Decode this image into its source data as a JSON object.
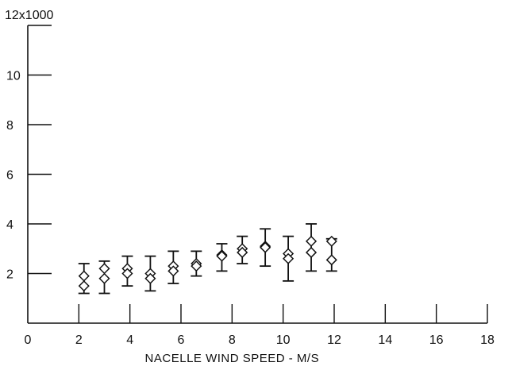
{
  "chart_data": {
    "type": "scatter",
    "title": "",
    "xlabel": "NACELLE WIND SPEED - M/S",
    "ylabel": "",
    "xlim": [
      0,
      18
    ],
    "ylim": [
      0,
      12000
    ],
    "x_ticks": [
      0,
      2,
      4,
      6,
      8,
      10,
      12,
      14,
      16,
      18
    ],
    "x_tick_labels": [
      "0",
      "2",
      "4",
      "6",
      "8",
      "10",
      "12",
      "14",
      "16",
      "18"
    ],
    "y_ticks": [
      0,
      2000,
      4000,
      6000,
      8000,
      10000,
      12000
    ],
    "y_tick_labels": [
      "",
      "2",
      "4",
      "6",
      "8",
      "10",
      "12x1000"
    ],
    "grid": false,
    "marker": "diamond-open",
    "points": [
      {
        "x": 2.2,
        "y": 1900
      },
      {
        "x": 2.2,
        "y": 1500
      },
      {
        "x": 3.0,
        "y": 2200
      },
      {
        "x": 3.0,
        "y": 1800
      },
      {
        "x": 3.9,
        "y": 2200
      },
      {
        "x": 3.9,
        "y": 2000
      },
      {
        "x": 4.8,
        "y": 2000
      },
      {
        "x": 4.8,
        "y": 1800
      },
      {
        "x": 5.7,
        "y": 2300
      },
      {
        "x": 5.7,
        "y": 2100
      },
      {
        "x": 6.6,
        "y": 2400
      },
      {
        "x": 6.6,
        "y": 2300
      },
      {
        "x": 7.6,
        "y": 2750
      },
      {
        "x": 7.6,
        "y": 2700
      },
      {
        "x": 8.4,
        "y": 3000
      },
      {
        "x": 8.4,
        "y": 2850
      },
      {
        "x": 9.3,
        "y": 3100
      },
      {
        "x": 9.3,
        "y": 3050
      },
      {
        "x": 10.2,
        "y": 2800
      },
      {
        "x": 10.2,
        "y": 2600
      },
      {
        "x": 11.1,
        "y": 3300
      },
      {
        "x": 11.1,
        "y": 2850
      },
      {
        "x": 11.9,
        "y": 3300
      },
      {
        "x": 11.9,
        "y": 2550
      }
    ],
    "error_bars": [
      {
        "x": 2.2,
        "low": 1200,
        "high": 2400
      },
      {
        "x": 3.0,
        "low": 1200,
        "high": 2500
      },
      {
        "x": 3.9,
        "low": 1500,
        "high": 2700
      },
      {
        "x": 4.8,
        "low": 1300,
        "high": 2700
      },
      {
        "x": 5.7,
        "low": 1600,
        "high": 2900
      },
      {
        "x": 6.6,
        "low": 1900,
        "high": 2900
      },
      {
        "x": 7.6,
        "low": 2100,
        "high": 3200
      },
      {
        "x": 8.4,
        "low": 2400,
        "high": 3500
      },
      {
        "x": 9.3,
        "low": 2300,
        "high": 3800
      },
      {
        "x": 10.2,
        "low": 1700,
        "high": 3500
      },
      {
        "x": 11.1,
        "low": 2100,
        "high": 4000
      },
      {
        "x": 11.9,
        "low": 2100,
        "high": 3400
      }
    ]
  }
}
